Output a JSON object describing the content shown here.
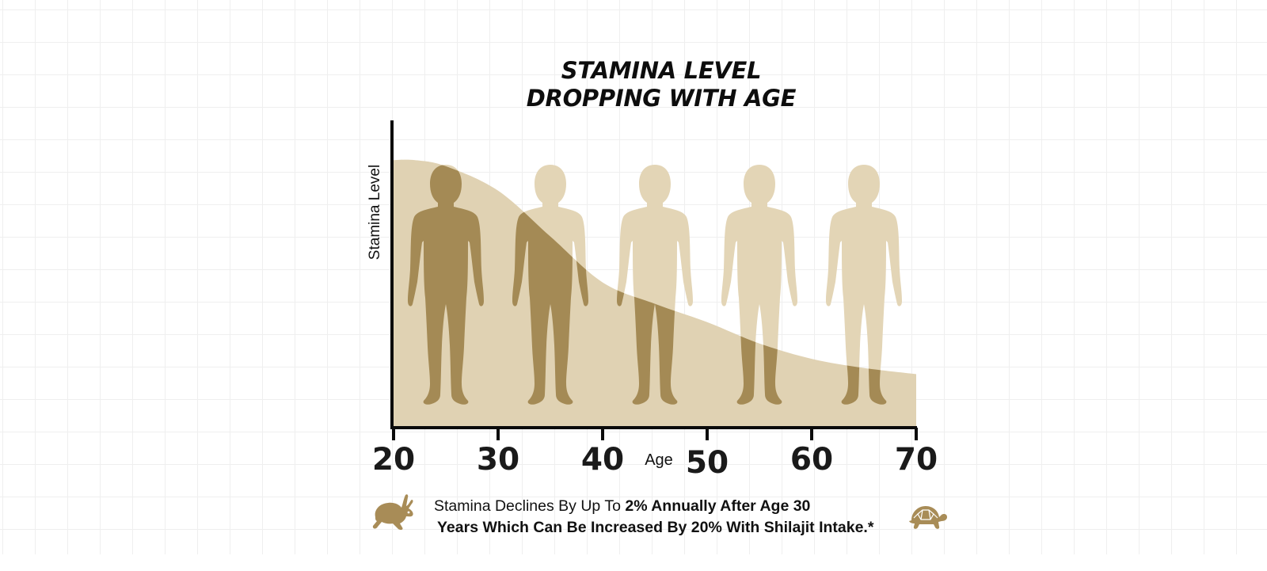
{
  "title": {
    "line1": "STAMINA LEVEL",
    "line2": "DROPPING WITH AGE"
  },
  "chart_data": {
    "type": "area",
    "xlabel": "Age",
    "ylabel": "Stamina Level",
    "x_ticks": [
      "20",
      "30",
      "40",
      "50",
      "60",
      "70"
    ],
    "xlim": [
      20,
      70
    ],
    "ylim": [
      0,
      100
    ],
    "x": [
      20,
      22,
      25,
      30,
      35,
      40,
      45,
      50,
      55,
      60,
      65,
      70
    ],
    "values": [
      87,
      87,
      85,
      77,
      62,
      47,
      40,
      34,
      27,
      22,
      19,
      17
    ],
    "figures_at_age": [
      25,
      35,
      45,
      55,
      65
    ],
    "colors": {
      "area": "#e0d2b3",
      "figure_light": "#e3d5b6",
      "figure_dark": "#a48a55",
      "axis": "#0b0b0b",
      "icon": "#a88c57"
    }
  },
  "caption": {
    "line1_normal": "Stamina Declines By Up To ",
    "line1_bold": "2% Annually After Age 30",
    "line2": "Years Which Can Be Increased By 20% With Shilajit Intake.*"
  },
  "icons": {
    "left": "rabbit-icon",
    "right": "turtle-icon"
  }
}
